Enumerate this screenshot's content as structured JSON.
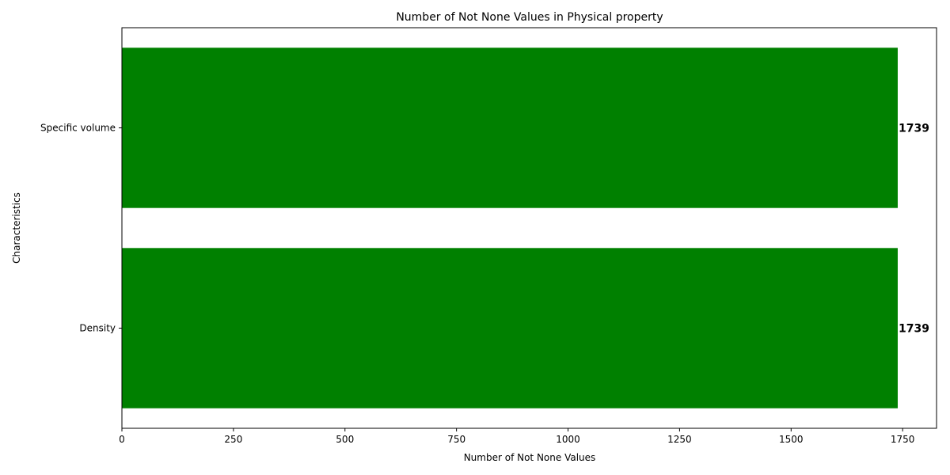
{
  "chart_data": {
    "type": "bar",
    "orientation": "horizontal",
    "title": "Number of Not None Values in Physical property",
    "xlabel": "Number of Not None Values",
    "ylabel": "Characteristics",
    "categories": [
      "Density",
      "Specific volume"
    ],
    "values": [
      1739,
      1739
    ],
    "data_labels": [
      "1739",
      "1739"
    ],
    "xlim": [
      0,
      1826
    ],
    "xticks": [
      0,
      250,
      500,
      750,
      1000,
      1250,
      1500,
      1750
    ],
    "xtick_labels": [
      "0",
      "250",
      "500",
      "750",
      "1000",
      "1250",
      "1500",
      "1750"
    ],
    "bar_color": "#008000",
    "grid": false,
    "legend": "none"
  }
}
